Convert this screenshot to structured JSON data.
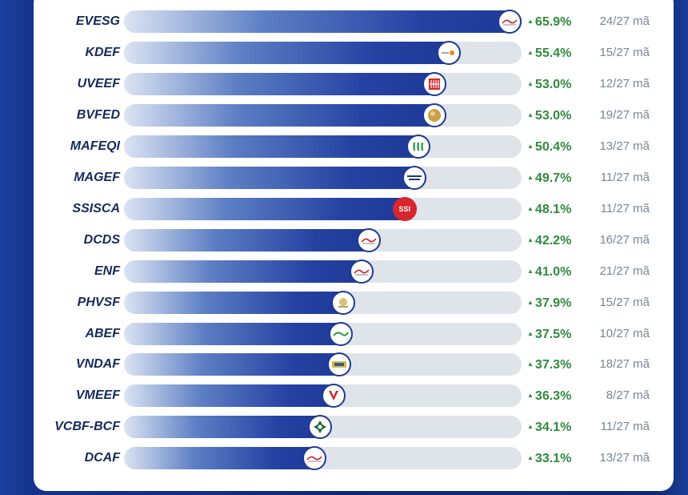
{
  "chart_data": {
    "type": "bar",
    "orientation": "horizontal",
    "xlim": [
      0,
      65.9
    ],
    "categories": [
      "EVESG",
      "KDEF",
      "UVEEF",
      "BVFED",
      "MAFEQI",
      "MAGEF",
      "SSISCA",
      "DCDS",
      "ENF",
      "PHVSF",
      "ABEF",
      "VNDAF",
      "VMEEF",
      "VCBF-BCF",
      "DCAF"
    ],
    "values": [
      65.9,
      55.4,
      53.0,
      53.0,
      50.4,
      49.7,
      48.1,
      42.2,
      41.0,
      37.9,
      37.5,
      37.3,
      36.3,
      34.1,
      33.1
    ],
    "value_labels": [
      "65.9%",
      "55.4%",
      "53.0%",
      "53.0%",
      "50.4%",
      "49.7%",
      "48.1%",
      "42.2%",
      "41.0%",
      "37.9%",
      "37.5%",
      "37.3%",
      "36.3%",
      "34.1%",
      "33.1%"
    ],
    "counts": [
      "24/27 mã",
      "15/27 mã",
      "12/27 mã",
      "19/27 mã",
      "13/27 mã",
      "11/27 mã",
      "11/27 mã",
      "16/27 mã",
      "21/27 mã",
      "15/27 mã",
      "10/27 mã",
      "18/27 mã",
      "8/27 mã",
      "11/27 mã",
      "13/27 mã"
    ],
    "logos": [
      "dragon-capital-logo",
      "kim-logo",
      "uob-logo",
      "bao-viet-logo",
      "mirae-asset-logo",
      "manulife-logo",
      "ssi-logo",
      "dragon-capital-logo",
      "dragon-capital-logo",
      "phu-hung-logo",
      "abf-logo",
      "vinacapital-logo",
      "vietcombank-logo",
      "vcbf-logo",
      "dragon-capital-logo"
    ],
    "logo_text": {
      "ssi-logo": "SSI"
    },
    "colors": {
      "bar_dark": "#1e3996",
      "bar_light": "#dbe4f3",
      "track": "#dfe3ea",
      "up_green": "#2e8b3c",
      "count_grey": "#7a8597"
    }
  }
}
